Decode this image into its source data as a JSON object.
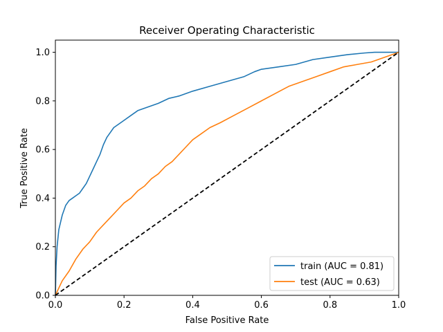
{
  "chart_data": {
    "type": "line",
    "title": "Receiver Operating Characteristic",
    "xlabel": "False Positive Rate",
    "ylabel": "True Positive Rate",
    "xlim": [
      0,
      1
    ],
    "ylim": [
      0,
      1.05
    ],
    "xticks": [
      0.0,
      0.2,
      0.4,
      0.6,
      0.8,
      1.0
    ],
    "yticks": [
      0.0,
      0.2,
      0.4,
      0.6,
      0.8,
      1.0
    ],
    "xtick_labels": [
      "0.0",
      "0.2",
      "0.4",
      "0.6",
      "0.8",
      "1.0"
    ],
    "ytick_labels": [
      "0.0",
      "0.2",
      "0.4",
      "0.6",
      "0.8",
      "1.0"
    ],
    "grid": false,
    "legend_position": "lower-right",
    "series": [
      {
        "name": "train (AUC = 0.81)",
        "color": "#1f77b4",
        "style": "solid",
        "x": [
          0.0,
          0.002,
          0.005,
          0.01,
          0.015,
          0.02,
          0.03,
          0.04,
          0.05,
          0.06,
          0.07,
          0.08,
          0.09,
          0.1,
          0.11,
          0.12,
          0.13,
          0.14,
          0.15,
          0.16,
          0.17,
          0.18,
          0.19,
          0.2,
          0.22,
          0.24,
          0.26,
          0.28,
          0.3,
          0.33,
          0.36,
          0.4,
          0.45,
          0.5,
          0.55,
          0.58,
          0.6,
          0.65,
          0.7,
          0.75,
          0.8,
          0.85,
          0.9,
          0.93,
          1.0
        ],
        "y": [
          0.0,
          0.12,
          0.2,
          0.27,
          0.3,
          0.33,
          0.37,
          0.39,
          0.4,
          0.41,
          0.42,
          0.44,
          0.46,
          0.49,
          0.52,
          0.55,
          0.58,
          0.62,
          0.65,
          0.67,
          0.69,
          0.7,
          0.71,
          0.72,
          0.74,
          0.76,
          0.77,
          0.78,
          0.79,
          0.81,
          0.82,
          0.84,
          0.86,
          0.88,
          0.9,
          0.92,
          0.93,
          0.94,
          0.95,
          0.97,
          0.98,
          0.99,
          0.997,
          1.0,
          1.0
        ]
      },
      {
        "name": "test (AUC = 0.63)",
        "color": "#ff7f0e",
        "style": "solid",
        "x": [
          0.0,
          0.01,
          0.02,
          0.04,
          0.06,
          0.08,
          0.1,
          0.12,
          0.14,
          0.16,
          0.18,
          0.2,
          0.22,
          0.24,
          0.26,
          0.28,
          0.3,
          0.32,
          0.34,
          0.36,
          0.38,
          0.4,
          0.42,
          0.45,
          0.48,
          0.52,
          0.56,
          0.6,
          0.64,
          0.68,
          0.72,
          0.76,
          0.8,
          0.84,
          0.88,
          0.92,
          0.96,
          1.0
        ],
        "y": [
          0.0,
          0.03,
          0.06,
          0.1,
          0.15,
          0.19,
          0.22,
          0.26,
          0.29,
          0.32,
          0.35,
          0.38,
          0.4,
          0.43,
          0.45,
          0.48,
          0.5,
          0.53,
          0.55,
          0.58,
          0.61,
          0.64,
          0.66,
          0.69,
          0.71,
          0.74,
          0.77,
          0.8,
          0.83,
          0.86,
          0.88,
          0.9,
          0.92,
          0.94,
          0.95,
          0.96,
          0.98,
          1.0
        ]
      },
      {
        "name": "",
        "color": "#000000",
        "style": "dashed",
        "x": [
          0.0,
          1.0
        ],
        "y": [
          0.0,
          1.0
        ]
      }
    ]
  }
}
